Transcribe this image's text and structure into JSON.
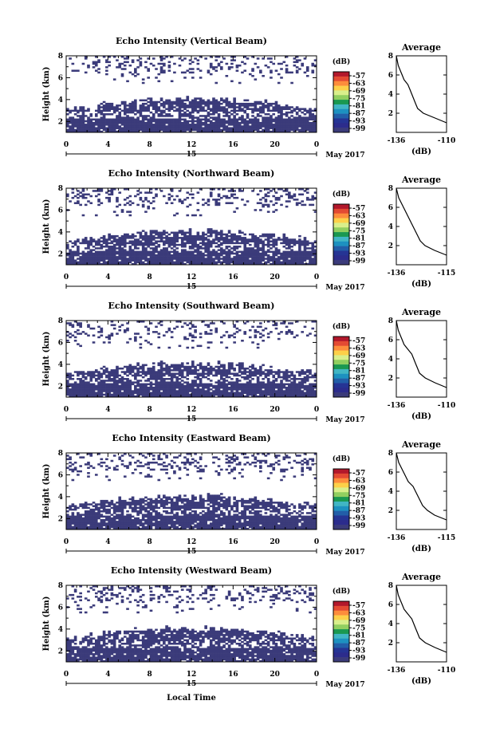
{
  "page": {
    "bottom_xlabel": "Local Time",
    "colorbar_unit": "(dB)",
    "colorbar_ticks": [
      "-57",
      "-63",
      "-69",
      "-75",
      "-81",
      "-87",
      "-93",
      "-99"
    ],
    "colorbar_colors": [
      "#b2182b",
      "#e34a33",
      "#fd8d3c",
      "#fdd049",
      "#d9ef8b",
      "#91cf60",
      "#1a9850",
      "#41b6c4",
      "#1d91c0",
      "#225ea8",
      "#253494",
      "#2c2c8c",
      "#3b3b7a"
    ],
    "fill_color": "#3b3b7a",
    "line_color": "#000000"
  },
  "chart_data": [
    {
      "type": "heatmap",
      "title": "Echo Intensity (Vertical Beam)",
      "ylabel": "Height (km)",
      "xticks": [
        "0",
        "4",
        "8",
        "12",
        "16",
        "20",
        "0"
      ],
      "day_label": "15",
      "date_label": "May 2017",
      "xlim": [
        0,
        24
      ],
      "ylim": [
        1,
        8
      ],
      "yticks": [
        "2",
        "4",
        "6",
        "8"
      ],
      "colorbar_range": [
        -99,
        -57
      ],
      "profile": {
        "title": "Average",
        "xlabel": "(dB)",
        "xticks": [
          "-136",
          "-110"
        ],
        "xlim": [
          -136,
          -110
        ],
        "ylim": [
          0,
          8
        ],
        "yticks": [
          "2",
          "4",
          "6",
          "8"
        ],
        "heights": [
          1,
          1.5,
          2,
          2.5,
          3,
          3.5,
          4,
          4.5,
          5,
          5.5,
          6,
          6.5,
          7,
          7.5,
          8
        ],
        "values": [
          -110,
          -116,
          -122,
          -125,
          -126,
          -127,
          -128,
          -129,
          -130,
          -132,
          -133,
          -134,
          -135,
          -135.5,
          -136
        ]
      }
    },
    {
      "type": "heatmap",
      "title": "Echo Intensity (Northward Beam)",
      "ylabel": "Height (km)",
      "xticks": [
        "0",
        "4",
        "8",
        "12",
        "16",
        "20",
        "0"
      ],
      "day_label": "15",
      "date_label": "May 2017",
      "xlim": [
        0,
        24
      ],
      "ylim": [
        1,
        8
      ],
      "yticks": [
        "2",
        "4",
        "6",
        "8"
      ],
      "colorbar_range": [
        -99,
        -57
      ],
      "profile": {
        "title": "Average",
        "xlabel": "(dB)",
        "xticks": [
          "-136",
          "-115"
        ],
        "xlim": [
          -136,
          -115
        ],
        "ylim": [
          0,
          8
        ],
        "yticks": [
          "2",
          "4",
          "6",
          "8"
        ],
        "heights": [
          1,
          1.5,
          2,
          2.5,
          3,
          3.5,
          4,
          4.5,
          5,
          5.5,
          6,
          6.5,
          7,
          7.5,
          8
        ],
        "values": [
          -115,
          -120,
          -124,
          -126,
          -127,
          -128,
          -129,
          -130,
          -131,
          -132,
          -133,
          -134,
          -135,
          -135.5,
          -136
        ]
      }
    },
    {
      "type": "heatmap",
      "title": "Echo Intensity (Southward Beam)",
      "ylabel": "Height (km)",
      "xticks": [
        "0",
        "4",
        "8",
        "12",
        "16",
        "20",
        "0"
      ],
      "day_label": "15",
      "date_label": "May 2017",
      "xlim": [
        0,
        24
      ],
      "ylim": [
        1,
        8
      ],
      "yticks": [
        "2",
        "4",
        "6",
        "8"
      ],
      "colorbar_range": [
        -99,
        -57
      ],
      "profile": {
        "title": "Average",
        "xlabel": "(dB)",
        "xticks": [
          "-136",
          "-110"
        ],
        "xlim": [
          -136,
          -110
        ],
        "ylim": [
          0,
          8
        ],
        "yticks": [
          "2",
          "4",
          "6",
          "8"
        ],
        "heights": [
          1,
          1.5,
          2,
          2.5,
          3,
          3.5,
          4,
          4.5,
          5,
          5.5,
          6,
          6.5,
          7,
          7.5,
          8
        ],
        "values": [
          -110,
          -116,
          -121,
          -124,
          -125,
          -126,
          -127,
          -128,
          -130,
          -132,
          -133,
          -134,
          -135,
          -135.5,
          -136
        ]
      }
    },
    {
      "type": "heatmap",
      "title": "Echo Intensity (Eastward Beam)",
      "ylabel": "Height (km)",
      "xticks": [
        "0",
        "4",
        "8",
        "12",
        "16",
        "20",
        "0"
      ],
      "day_label": "15",
      "date_label": "May 2017",
      "xlim": [
        0,
        24
      ],
      "ylim": [
        1,
        8
      ],
      "yticks": [
        "2",
        "4",
        "6",
        "8"
      ],
      "colorbar_range": [
        -99,
        -57
      ],
      "profile": {
        "title": "Average",
        "xlabel": "(dB)",
        "xticks": [
          "-136",
          "-115"
        ],
        "xlim": [
          -136,
          -115
        ],
        "ylim": [
          0,
          8
        ],
        "yticks": [
          "2",
          "4",
          "6",
          "8"
        ],
        "heights": [
          1,
          1.5,
          2,
          2.5,
          3,
          3.5,
          4,
          4.5,
          5,
          5.5,
          6,
          6.5,
          7,
          7.5,
          8
        ],
        "values": [
          -115,
          -120,
          -123,
          -125,
          -126,
          -127,
          -128,
          -129,
          -131,
          -132,
          -133,
          -134,
          -135,
          -135.5,
          -136
        ]
      }
    },
    {
      "type": "heatmap",
      "title": "Echo Intensity (Westward Beam)",
      "ylabel": "Height (km)",
      "xticks": [
        "0",
        "4",
        "8",
        "12",
        "16",
        "20",
        "0"
      ],
      "day_label": "15",
      "date_label": "May 2017",
      "xlim": [
        0,
        24
      ],
      "ylim": [
        1,
        8
      ],
      "yticks": [
        "2",
        "4",
        "6",
        "8"
      ],
      "colorbar_range": [
        -99,
        -57
      ],
      "profile": {
        "title": "Average",
        "xlabel": "(dB)",
        "xticks": [
          "-136",
          "-110"
        ],
        "xlim": [
          -136,
          -110
        ],
        "ylim": [
          0,
          8
        ],
        "yticks": [
          "2",
          "4",
          "6",
          "8"
        ],
        "heights": [
          1,
          1.5,
          2,
          2.5,
          3,
          3.5,
          4,
          4.5,
          5,
          5.5,
          6,
          6.5,
          7,
          7.5,
          8
        ],
        "values": [
          -110,
          -116,
          -121,
          -124,
          -125,
          -126,
          -127,
          -128,
          -130,
          -132,
          -133,
          -134,
          -135,
          -135.5,
          -136
        ]
      }
    }
  ]
}
